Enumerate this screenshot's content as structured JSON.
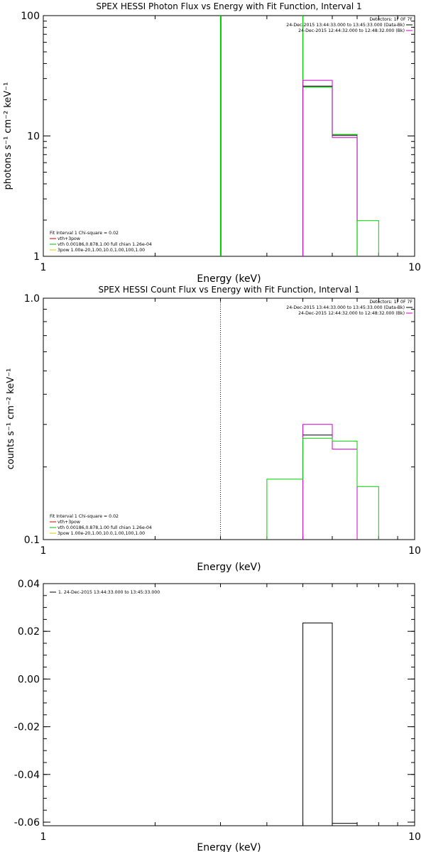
{
  "chart_data": [
    {
      "type": "step-histogram",
      "title": "SPEX HESSI Photon Flux vs Energy with Fit Function, Interval 1",
      "xlabel": "Energy (keV)",
      "ylabel": "photons s⁻¹ cm⁻² keV⁻¹",
      "xscale": "log",
      "yscale": "log",
      "xlim": [
        1,
        10
      ],
      "ylim": [
        1,
        100
      ],
      "xticks": [
        {
          "v": 1,
          "label": "1"
        },
        {
          "v": 10,
          "label": "10"
        }
      ],
      "yticks": [
        {
          "v": 1,
          "label": "1"
        },
        {
          "v": 10,
          "label": "10"
        },
        {
          "v": 100,
          "label": "100"
        }
      ],
      "vlines": [
        {
          "x": 3.0,
          "style": "green-dotted"
        }
      ],
      "legend_right": {
        "lines": [
          {
            "text": "Detectors: 1F 0F 7F",
            "color": null
          },
          {
            "text": "24-Dec-2015 13:44:33.000 to 13:45:33.000 (Data-Bk)",
            "color": "#000000"
          },
          {
            "text": "24-Dec-2015 12:44:32.000 to 12:48:32.000 (Bk)",
            "color": "#cc00cc"
          }
        ]
      },
      "legend_left": {
        "lines": [
          {
            "text": "Fit Interval 1    Chi-square = 0.02",
            "color": null
          },
          {
            "text": "vth+3pow",
            "color": "#cc0000"
          },
          {
            "text": "vth 0.00186,0.878,1.00   full chian 1.26e-04",
            "color": "#00bb00"
          },
          {
            "text": "3pow 1.00e-20,1.00,10.0,1.00,100,1.00",
            "color": "#cccc00"
          }
        ]
      },
      "series": [
        {
          "color": "#00cc00",
          "width": 1.2,
          "segments": [
            {
              "x": [
                3.0,
                3.0
              ],
              "y": [
                1,
                100
              ]
            },
            {
              "x": [
                5.0,
                5.0
              ],
              "y": [
                1,
                100
              ]
            },
            {
              "x": [
                5.0,
                6.0,
                6.0,
                7.0,
                7.0
              ],
              "y": [
                25.5,
                25.5,
                10.3,
                10.3,
                1
              ]
            }
          ]
        },
        {
          "color": "#cc00cc",
          "width": 1.0,
          "segments": [
            {
              "x": [
                5.0,
                5.0,
                6.0,
                6.0,
                7.0,
                7.0
              ],
              "y": [
                1,
                29,
                29,
                9.7,
                9.7,
                1
              ]
            }
          ]
        },
        {
          "color": "#000000",
          "width": 1.0,
          "segments": [
            {
              "x": [
                5.0,
                6.0
              ],
              "y": [
                26,
                26
              ]
            },
            {
              "x": [
                6.0,
                7.0
              ],
              "y": [
                10.1,
                10.1
              ]
            }
          ]
        },
        {
          "color": "#00cc00",
          "width": 1.0,
          "segments": [
            {
              "x": [
                7.0,
                7.0,
                8.0,
                8.0
              ],
              "y": [
                1,
                1.98,
                1.98,
                1
              ]
            }
          ]
        }
      ]
    },
    {
      "type": "step-histogram",
      "title": "SPEX HESSI Count Flux vs Energy with Fit Function, Interval 1",
      "xlabel": "Energy (keV)",
      "ylabel": "counts s⁻¹ cm⁻² keV⁻¹",
      "xscale": "log",
      "yscale": "log",
      "xlim": [
        1,
        10
      ],
      "ylim": [
        0.1,
        1.0
      ],
      "xticks": [
        {
          "v": 1,
          "label": "1"
        },
        {
          "v": 10,
          "label": "10"
        }
      ],
      "yticks": [
        {
          "v": 0.1,
          "label": "0.1"
        },
        {
          "v": 1.0,
          "label": "1.0"
        }
      ],
      "vlines": [
        {
          "x": 3.0,
          "style": "black-dotted"
        }
      ],
      "legend_right": {
        "lines": [
          {
            "text": "Detectors: 1F 0F 7F",
            "color": null
          },
          {
            "text": "24-Dec-2015 13:44:33.000 to 13:45:33.000 (Data-Bk)",
            "color": "#000000"
          },
          {
            "text": "24-Dec-2015 12:44:32.000 to 12:48:32.000 (Bk)",
            "color": "#cc00cc"
          }
        ]
      },
      "legend_left": {
        "lines": [
          {
            "text": "Fit Interval 1    Chi-square = 0.02",
            "color": null
          },
          {
            "text": "vth+3pow",
            "color": "#cc0000"
          },
          {
            "text": "vth 0.00186,0.878,1.00   full chian 1.26e-04",
            "color": "#00bb00"
          },
          {
            "text": "3pow 1.00e-20,1.00,10.0,1.00,100,1.00",
            "color": "#cccc00"
          }
        ]
      },
      "series": [
        {
          "color": "#cc00cc",
          "width": 1.0,
          "segments": [
            {
              "x": [
                5.0,
                5.0,
                6.0,
                6.0,
                7.0,
                7.0
              ],
              "y": [
                0.1,
                0.3,
                0.3,
                0.237,
                0.237,
                0.1
              ]
            }
          ]
        },
        {
          "color": "#000000",
          "width": 1.0,
          "segments": [
            {
              "x": [
                5.0,
                6.0
              ],
              "y": [
                0.271,
                0.271
              ]
            }
          ]
        },
        {
          "color": "#00cc00",
          "width": 1.0,
          "segments": [
            {
              "x": [
                4.0,
                4.0,
                5.0,
                5.0,
                6.0,
                6.0,
                7.0,
                7.0,
                8.0,
                8.0
              ],
              "y": [
                0.1,
                0.178,
                0.178,
                0.263,
                0.263,
                0.256,
                0.256,
                0.166,
                0.166,
                0.1
              ]
            }
          ]
        }
      ]
    },
    {
      "type": "step-histogram",
      "title": "",
      "xlabel": "Energy (keV)",
      "ylabel": "",
      "xscale": "log",
      "yscale": "linear",
      "xlim": [
        1,
        10
      ],
      "ylim": [
        -0.0615,
        0.04
      ],
      "xticks": [
        {
          "v": 1,
          "label": "1"
        },
        {
          "v": 10,
          "label": "10"
        }
      ],
      "yticks": [
        {
          "v": 0.04,
          "label": "0.04"
        },
        {
          "v": 0.02,
          "label": "0.02"
        },
        {
          "v": 0.0,
          "label": "0.00"
        },
        {
          "v": -0.02,
          "label": "-0.02"
        },
        {
          "v": -0.04,
          "label": "-0.04"
        },
        {
          "v": -0.06,
          "label": "-0.06"
        }
      ],
      "vlines": [],
      "legend_left_top": {
        "lines": [
          {
            "text": "1. 24-Dec-2015 13:44:33.000 to 13:45:33.000",
            "color": "#000000"
          }
        ]
      },
      "series": [
        {
          "color": "#000000",
          "width": 1.0,
          "segments": [
            {
              "x": [
                5.0,
                5.0,
                6.0,
                6.0
              ],
              "y": [
                -0.0615,
                0.0235,
                0.0235,
                -0.0615
              ]
            },
            {
              "x": [
                6.0,
                7.0,
                7.0
              ],
              "y": [
                -0.0605,
                -0.0605,
                -0.0615
              ]
            }
          ]
        }
      ]
    }
  ]
}
